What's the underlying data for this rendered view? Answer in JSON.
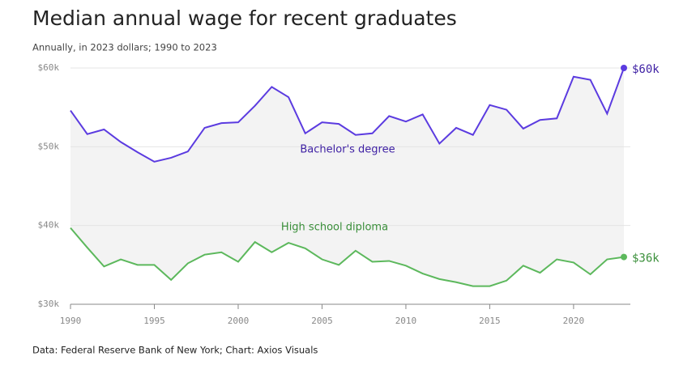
{
  "chart_data": {
    "type": "line",
    "title": "Median annual wage for recent graduates",
    "subtitle": "Annually, in 2023 dollars; 1990 to 2023",
    "source": "Data: Federal Reserve Bank of New York; Chart: Axios Visuals",
    "x": [
      1990,
      1991,
      1992,
      1993,
      1994,
      1995,
      1996,
      1997,
      1998,
      1999,
      2000,
      2001,
      2002,
      2003,
      2004,
      2005,
      2006,
      2007,
      2008,
      2009,
      2010,
      2011,
      2012,
      2013,
      2014,
      2015,
      2016,
      2017,
      2018,
      2019,
      2020,
      2021,
      2022,
      2023
    ],
    "series": [
      {
        "name": "Bachelor's degree",
        "color": "#5b3be0",
        "values": [
          54600,
          51600,
          52200,
          50600,
          49300,
          48100,
          48600,
          49400,
          52400,
          53000,
          53100,
          55200,
          57600,
          56300,
          51700,
          53100,
          52900,
          51500,
          51700,
          53900,
          53200,
          54100,
          50400,
          52400,
          51500,
          55300,
          54700,
          52300,
          53400,
          53600,
          58900,
          58500,
          54200,
          60000
        ],
        "value_labels": [
          null,
          null,
          null,
          null,
          null,
          null,
          null,
          null,
          null,
          null,
          null,
          null,
          null,
          null,
          null,
          null,
          null,
          null,
          null,
          null,
          null,
          null,
          null,
          null,
          null,
          null,
          null,
          null,
          null,
          null,
          null,
          null,
          null,
          "$60k"
        ]
      },
      {
        "name": "High school diploma",
        "color": "#5cb85c",
        "values": [
          39700,
          37200,
          34800,
          35700,
          35000,
          35000,
          33100,
          35200,
          36300,
          36600,
          35400,
          37900,
          36600,
          37800,
          37100,
          35700,
          35000,
          36800,
          35400,
          35500,
          34900,
          33900,
          33200,
          32800,
          32300,
          32300,
          33000,
          34900,
          34000,
          35700,
          35300,
          33800,
          35700,
          36000
        ],
        "value_labels": [
          null,
          null,
          null,
          null,
          null,
          null,
          null,
          null,
          null,
          null,
          null,
          null,
          null,
          null,
          null,
          null,
          null,
          null,
          null,
          null,
          null,
          null,
          null,
          null,
          null,
          null,
          null,
          null,
          null,
          null,
          null,
          null,
          null,
          "$36k"
        ]
      }
    ],
    "xlim": [
      1990,
      2023
    ],
    "xticks": [
      1990,
      1995,
      2000,
      2005,
      2010,
      2015,
      2020
    ],
    "ylim": [
      30000,
      60000
    ],
    "yticks": [
      {
        "value": 30000,
        "label": "$30k"
      },
      {
        "value": 40000,
        "label": "$40k"
      },
      {
        "value": 50000,
        "label": "$50k"
      },
      {
        "value": 60000,
        "label": "$60k"
      }
    ],
    "grid": true
  }
}
